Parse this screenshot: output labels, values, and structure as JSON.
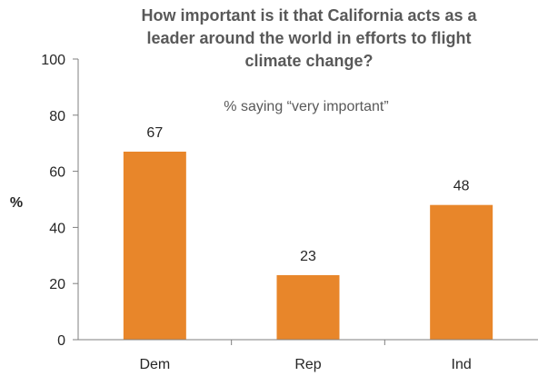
{
  "chart_data": {
    "type": "bar",
    "title": [
      "How important is it that California acts as a",
      "leader around the world in efforts to flight",
      "climate change?"
    ],
    "subtitle": "% saying “very important”",
    "ylabel": "%",
    "xlabel": "",
    "categories": [
      "Dem",
      "Rep",
      "Ind"
    ],
    "values": [
      67,
      23,
      48
    ],
    "data_labels": [
      "67",
      "23",
      "48"
    ],
    "ylim": [
      0,
      100
    ],
    "yticks": [
      "0",
      "20",
      "40",
      "60",
      "80",
      "100"
    ],
    "ytick_values": [
      0,
      20,
      40,
      60,
      80,
      100
    ],
    "grid": false,
    "legend": "none",
    "bar_color": "#E8862A"
  }
}
